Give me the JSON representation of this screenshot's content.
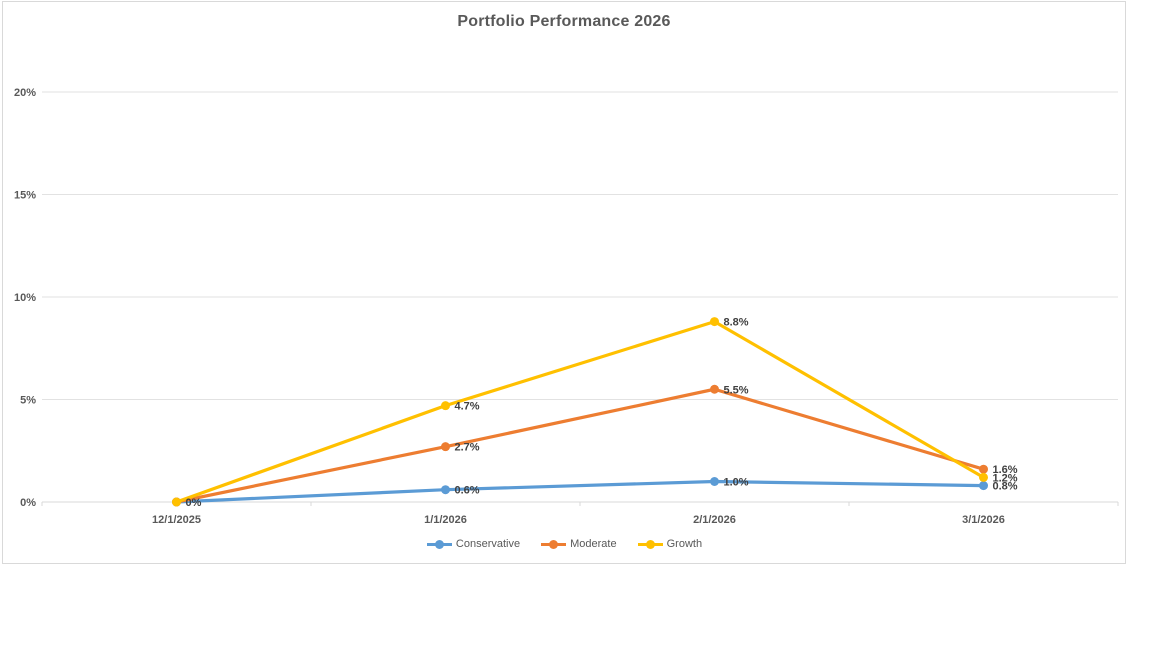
{
  "chart_data": {
    "type": "line",
    "title": "Portfolio Performance 2026",
    "categories": [
      "12/1/2025",
      "1/1/2026",
      "2/1/2026",
      "3/1/2026"
    ],
    "series": [
      {
        "name": "Conservative",
        "color": "#5B9BD5",
        "values": [
          0,
          0.6,
          1.0,
          0.8
        ],
        "point_labels": [
          "",
          "0.6%",
          "1.0%",
          "0.8%"
        ]
      },
      {
        "name": "Moderate",
        "color": "#ED7D31",
        "values": [
          0,
          2.7,
          5.5,
          1.6
        ],
        "point_labels": [
          "",
          "2.7%",
          "5.5%",
          "1.6%"
        ]
      },
      {
        "name": "Growth",
        "color": "#FFC000",
        "values": [
          0,
          4.7,
          8.8,
          1.2
        ],
        "point_labels": [
          "0%",
          "4.7%",
          "8.8%",
          "1.2%"
        ]
      }
    ],
    "xlabel": "",
    "ylabel": "",
    "ylim": [
      0,
      20
    ],
    "yticks": [
      {
        "label": "0%",
        "value": 0
      },
      {
        "label": "5%",
        "value": 5
      },
      {
        "label": "10%",
        "value": 10
      },
      {
        "label": "15%",
        "value": 15
      },
      {
        "label": "20%",
        "value": 20
      }
    ],
    "grid": true,
    "legend_position": "bottom",
    "colors": {
      "axis_label": "#595959",
      "data_label": "#404040",
      "gridline": "#E2E2E2",
      "axis_line": "#D9D9D9",
      "title": "#595959",
      "frame_border": "#D9D9D9"
    }
  }
}
